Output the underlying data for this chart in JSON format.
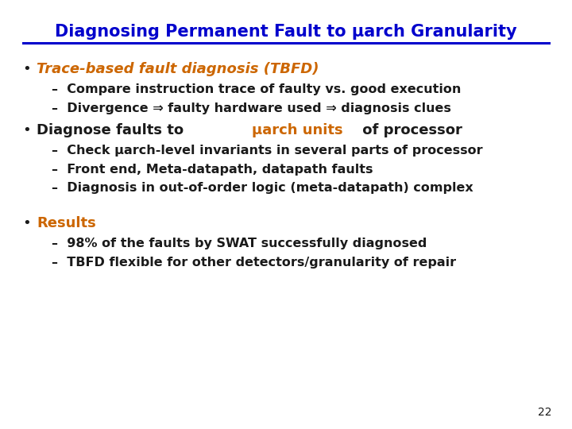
{
  "title": "Diagnosing Permanent Fault to μarch Granularity",
  "title_color": "#0000CC",
  "title_fontsize": 15,
  "background_color": "#FFFFFF",
  "line_color": "#0000CC",
  "slide_number": "22",
  "bullet1_text_italic": "Trace-based fault diagnosis (TBFD)",
  "bullet1_color": "#CC6600",
  "sub1a": "–  Compare instruction trace of faulty vs. good execution",
  "sub1b": "–  Divergence ⇒ faulty hardware used ⇒ diagnosis clues",
  "bullet2_text_black": "Diagnose faults to ",
  "bullet2_text_orange": "μarch units",
  "bullet2_text_black2": " of processor",
  "sub2a": "–  Check μarch-level invariants in several parts of processor",
  "sub2b": "–  Front end, Meta-datapath, datapath faults",
  "sub2c": "–  Diagnosis in out-of-order logic (meta-datapath) complex",
  "bullet3_text": "Results",
  "bullet3_color": "#CC6600",
  "sub3a": "–  98% of the faults by SWAT successfully diagnosed",
  "sub3b": "–  TBFD flexible for other detectors/granularity of repair",
  "text_color_black": "#1a1a1a",
  "text_color_orange": "#CC6600",
  "font_title": 15,
  "font_bullet": 12,
  "font_sub": 11.5
}
